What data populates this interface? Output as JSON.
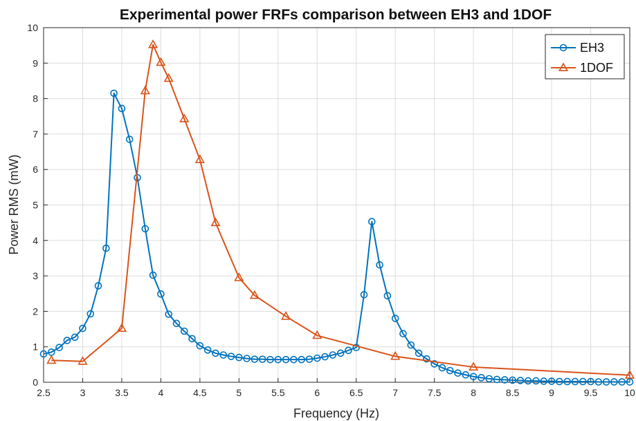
{
  "chart_data": {
    "type": "line",
    "title": "Experimental power FRFs comparison between EH3 and 1DOF",
    "xlabel": "Frequency (Hz)",
    "ylabel": "Power RMS (mW)",
    "xlim": [
      2.5,
      10
    ],
    "ylim": [
      0,
      10
    ],
    "xticks": [
      "2.5",
      "3",
      "3.5",
      "4",
      "4.5",
      "5",
      "5.5",
      "6",
      "6.5",
      "7",
      "7.5",
      "8",
      "8.5",
      "9",
      "9.5",
      "10"
    ],
    "yticks": [
      "0",
      "1",
      "2",
      "3",
      "4",
      "5",
      "6",
      "7",
      "8",
      "9",
      "10"
    ],
    "grid": true,
    "legend_position": "top-right",
    "series": [
      {
        "name": "EH3",
        "color": "#0072BD",
        "marker": "circle",
        "x": [
          2.5,
          2.6,
          2.7,
          2.8,
          2.9,
          3.0,
          3.1,
          3.2,
          3.3,
          3.4,
          3.5,
          3.6,
          3.7,
          3.8,
          3.9,
          4.0,
          4.1,
          4.2,
          4.3,
          4.4,
          4.5,
          4.6,
          4.7,
          4.8,
          4.9,
          5.0,
          5.1,
          5.2,
          5.3,
          5.4,
          5.5,
          5.6,
          5.7,
          5.8,
          5.9,
          6.0,
          6.1,
          6.2,
          6.3,
          6.4,
          6.5,
          6.6,
          6.7,
          6.8,
          6.9,
          7.0,
          7.1,
          7.2,
          7.3,
          7.4,
          7.5,
          7.6,
          7.7,
          7.8,
          7.9,
          8.0,
          8.1,
          8.2,
          8.3,
          8.4,
          8.5,
          8.6,
          8.7,
          8.8,
          8.9,
          9.0,
          9.1,
          9.2,
          9.3,
          9.4,
          9.5,
          9.6,
          9.7,
          9.8,
          9.9,
          10.0
        ],
        "y": [
          0.8,
          0.85,
          0.98,
          1.18,
          1.27,
          1.52,
          1.93,
          2.72,
          3.78,
          8.15,
          7.72,
          6.85,
          5.77,
          4.33,
          3.02,
          2.49,
          1.92,
          1.66,
          1.44,
          1.23,
          1.03,
          0.91,
          0.82,
          0.77,
          0.73,
          0.7,
          0.67,
          0.65,
          0.65,
          0.64,
          0.64,
          0.64,
          0.64,
          0.64,
          0.65,
          0.68,
          0.72,
          0.77,
          0.82,
          0.9,
          0.98,
          2.47,
          4.53,
          3.31,
          2.44,
          1.8,
          1.37,
          1.05,
          0.82,
          0.66,
          0.52,
          0.41,
          0.33,
          0.26,
          0.21,
          0.16,
          0.13,
          0.1,
          0.08,
          0.07,
          0.06,
          0.05,
          0.04,
          0.04,
          0.03,
          0.03,
          0.02,
          0.02,
          0.02,
          0.02,
          0.02,
          0.01,
          0.01,
          0.01,
          0.01,
          0.01
        ]
      },
      {
        "name": "1DOF",
        "color": "#D95319",
        "marker": "triangle",
        "x": [
          2.6,
          3.0,
          3.5,
          3.8,
          3.9,
          4.0,
          4.1,
          4.3,
          4.5,
          4.7,
          5.0,
          5.2,
          5.6,
          6.0,
          7.0,
          8.0,
          10.0
        ],
        "y": [
          0.62,
          0.59,
          1.52,
          8.22,
          9.52,
          9.02,
          8.57,
          7.43,
          6.28,
          4.5,
          2.95,
          2.45,
          1.86,
          1.32,
          0.73,
          0.43,
          0.2
        ]
      }
    ]
  }
}
